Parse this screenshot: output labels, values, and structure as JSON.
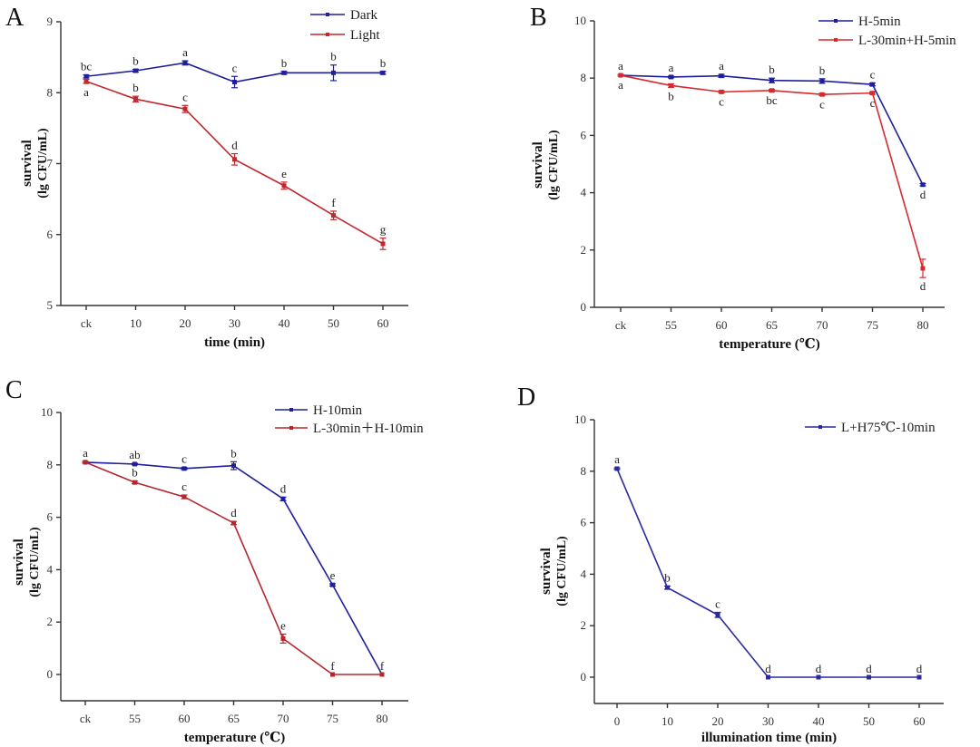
{
  "figure": {
    "panels": [
      "A",
      "B",
      "C",
      "D"
    ]
  },
  "chart_data": [
    {
      "panel": "A",
      "type": "line",
      "title": "",
      "xlabel": "time (min)",
      "ylabel": "survival",
      "ylabel_sub": "(lg CFU/mL)",
      "categories": [
        "ck",
        "10",
        "20",
        "30",
        "40",
        "50",
        "60"
      ],
      "ylim": [
        5,
        9
      ],
      "yticks": [
        5,
        6,
        7,
        8,
        9
      ],
      "grid": false,
      "legend": "top-right",
      "series": [
        {
          "name": "Dark",
          "color": "#1f1f9e",
          "values": [
            8.23,
            8.31,
            8.42,
            8.15,
            8.28,
            8.28,
            8.28
          ],
          "errors": [
            0.02,
            0.02,
            0.03,
            0.08,
            0.02,
            0.11,
            0.02
          ],
          "labels": [
            "bc",
            "b",
            "a",
            "c",
            "b",
            "b",
            "b"
          ],
          "label_pos": [
            "above",
            "above",
            "above",
            "above",
            "above",
            "above",
            "above"
          ]
        },
        {
          "name": "Light",
          "color": "#c0282d",
          "values": [
            8.16,
            7.91,
            7.77,
            7.06,
            6.69,
            6.27,
            5.87
          ],
          "errors": [
            0.03,
            0.04,
            0.05,
            0.08,
            0.05,
            0.06,
            0.08
          ],
          "labels": [
            "a",
            "b",
            "c",
            "d",
            "e",
            "f",
            "g"
          ],
          "label_pos": [
            "below",
            "above",
            "above",
            "above",
            "above",
            "above",
            "above"
          ]
        }
      ]
    },
    {
      "panel": "B",
      "type": "line",
      "title": "",
      "xlabel": "temperature (℃)",
      "ylabel": "survival",
      "ylabel_sub": "(lg CFU/mL)",
      "categories": [
        "ck",
        "55",
        "60",
        "65",
        "70",
        "75",
        "80"
      ],
      "ylim": [
        0,
        10
      ],
      "yticks": [
        0,
        2,
        4,
        6,
        8,
        10
      ],
      "grid": false,
      "legend": "top-right",
      "series": [
        {
          "name": "H-5min",
          "color": "#1f1f9e",
          "values": [
            8.1,
            8.04,
            8.08,
            7.92,
            7.9,
            7.78,
            4.28
          ],
          "errors": [
            0.03,
            0.03,
            0.05,
            0.08,
            0.08,
            0.05,
            0.04
          ],
          "labels": [
            "a",
            "a",
            "a",
            "b",
            "b",
            "c",
            "d"
          ],
          "label_pos": [
            "above",
            "above",
            "above",
            "above",
            "above",
            "above",
            "below"
          ]
        },
        {
          "name": "L-30min+H-5min",
          "color": "#d62a2f",
          "values": [
            8.1,
            7.74,
            7.52,
            7.57,
            7.43,
            7.48,
            1.36
          ],
          "errors": [
            0.03,
            0.06,
            0.04,
            0.04,
            0.04,
            0.04,
            0.32
          ],
          "labels": [
            "a",
            "b",
            "c",
            "bc",
            "c",
            "c",
            "d"
          ],
          "label_pos": [
            "below",
            "below",
            "below",
            "below",
            "below",
            "below",
            "below"
          ]
        }
      ]
    },
    {
      "panel": "C",
      "type": "line",
      "title": "",
      "xlabel": "temperature (℃)",
      "ylabel": "survival",
      "ylabel_sub": "(lg CFU/mL)",
      "categories": [
        "ck",
        "55",
        "60",
        "65",
        "70",
        "75",
        "80"
      ],
      "ylim": [
        -1,
        10
      ],
      "yticks": [
        0,
        2,
        4,
        6,
        8,
        10
      ],
      "grid": false,
      "legend": "top-right",
      "series": [
        {
          "name": "H-10min",
          "color": "#1f1f9e",
          "values": [
            8.1,
            8.03,
            7.86,
            7.97,
            6.7,
            3.42,
            0
          ],
          "errors": [
            0.03,
            0.03,
            0.04,
            0.15,
            0.07,
            0.04,
            0
          ],
          "labels": [
            "a",
            "ab",
            "c",
            "b",
            "d",
            "e",
            "f"
          ],
          "label_pos": [
            "above",
            "above",
            "above",
            "above",
            "above",
            "above",
            "above"
          ]
        },
        {
          "name": "L-30min＋H-10min",
          "color": "#b5262b",
          "values": [
            8.1,
            7.33,
            6.78,
            5.78,
            1.37,
            0,
            0
          ],
          "errors": [
            0.03,
            0.05,
            0.07,
            0.06,
            0.17,
            0,
            0
          ],
          "labels": [
            "",
            "b",
            "c",
            "d",
            "e",
            "f",
            ""
          ],
          "label_pos": [
            "above",
            "above",
            "above",
            "above",
            "above",
            "above",
            "above"
          ]
        }
      ]
    },
    {
      "panel": "D",
      "type": "line",
      "title": "",
      "xlabel": "illumination time (min)",
      "ylabel": "survival",
      "ylabel_sub": "(lg CFU/mL)",
      "categories": [
        "0",
        "10",
        "20",
        "30",
        "40",
        "50",
        "60"
      ],
      "ylim": [
        -1,
        10
      ],
      "yticks": [
        0,
        2,
        4,
        6,
        8,
        10
      ],
      "grid": false,
      "legend": "top-right",
      "series": [
        {
          "name": "L+H75℃-10min",
          "color": "#2a2aa0",
          "values": [
            8.1,
            3.48,
            2.42,
            0,
            0,
            0,
            0
          ],
          "errors": [
            0.03,
            0.06,
            0.1,
            0,
            0,
            0,
            0
          ],
          "labels": [
            "a",
            "b",
            "c",
            "d",
            "d",
            "d",
            "d"
          ],
          "label_pos": [
            "above",
            "above",
            "above",
            "above",
            "above",
            "above",
            "above"
          ]
        }
      ]
    }
  ]
}
